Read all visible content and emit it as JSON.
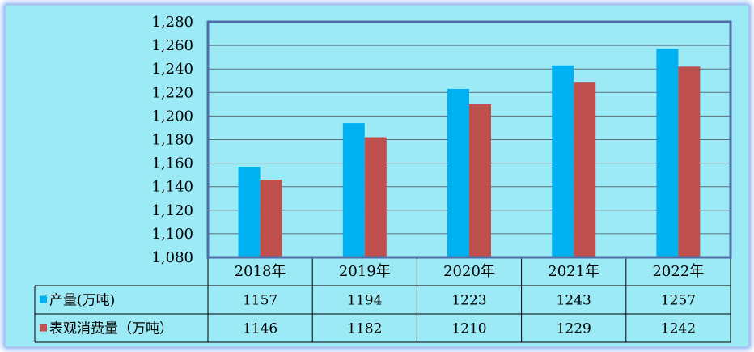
{
  "chart_data": {
    "type": "bar",
    "categories": [
      "2018年",
      "2019年",
      "2020年",
      "2021年",
      "2022年"
    ],
    "series": [
      {
        "name": "产量(万吨)",
        "values": [
          1157,
          1194,
          1223,
          1243,
          1257
        ],
        "color": "#00b0f0"
      },
      {
        "name": "表观消费量（万吨）",
        "values": [
          1146,
          1182,
          1210,
          1229,
          1242
        ],
        "color": "#c0504d"
      }
    ],
    "ylim": [
      1080,
      1280
    ],
    "yticks": [
      "1,080",
      "1,100",
      "1,120",
      "1,140",
      "1,160",
      "1,180",
      "1,200",
      "1,220",
      "1,240",
      "1,260",
      "1,280"
    ],
    "grid": true,
    "legend": "data-table",
    "colors": {
      "background": "#9ceaf5",
      "frame_border": "#a9c6f5",
      "plot_border": "#4f6ea8",
      "grid": "#5a6e7a"
    }
  }
}
